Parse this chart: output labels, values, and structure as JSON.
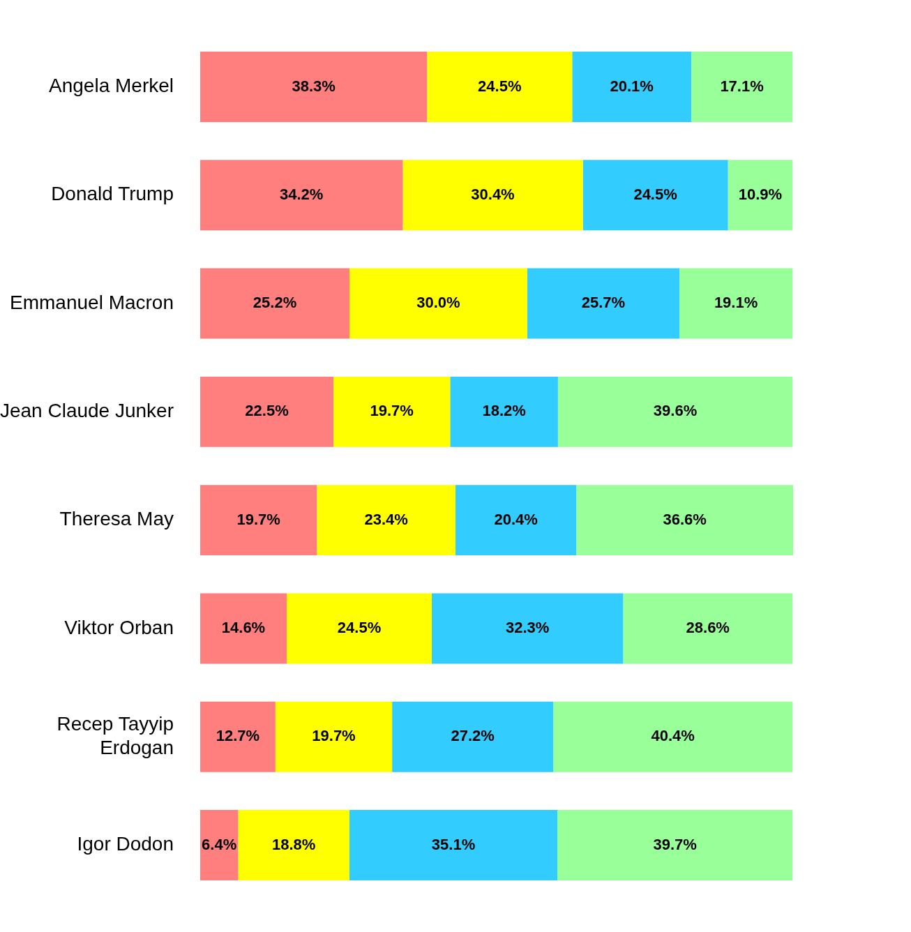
{
  "chart_data": {
    "type": "bar",
    "orientation": "horizontal",
    "stacked": true,
    "tick_labels": "y",
    "categories": [
      "Angela Merkel",
      "Donald Trump",
      "Emmanuel Macron",
      "Jean Claude Junker",
      "Theresa May",
      "Viktor Orban",
      "Recep Tayyip Erdogan",
      "Igor Dodon"
    ],
    "series": [
      {
        "color": "#ff7f7f",
        "values": [
          38.3,
          34.2,
          25.2,
          22.5,
          19.7,
          14.6,
          12.7,
          6.4
        ],
        "value_labels": [
          "38.3%",
          "34.2%",
          "25.2%",
          "22.5%",
          "19.7%",
          "14.6%",
          "12.7%",
          "6.4%"
        ]
      },
      {
        "color": "#ffff00",
        "values": [
          24.5,
          30.4,
          30.0,
          19.7,
          23.4,
          24.5,
          19.7,
          18.8
        ],
        "value_labels": [
          "24.5%",
          "30.4%",
          "30.0%",
          "19.7%",
          "23.4%",
          "24.5%",
          "19.7%",
          "18.8%"
        ]
      },
      {
        "color": "#33ccff",
        "values": [
          20.1,
          24.5,
          25.7,
          18.2,
          20.4,
          32.3,
          27.2,
          35.1
        ],
        "value_labels": [
          "20.1%",
          "24.5%",
          "25.7%",
          "18.2%",
          "20.4%",
          "32.3%",
          "27.2%",
          "35.1%"
        ]
      },
      {
        "color": "#99ff99",
        "values": [
          17.1,
          10.9,
          19.1,
          39.6,
          36.6,
          28.6,
          40.4,
          39.7
        ],
        "value_labels": [
          "17.1%",
          "10.9%",
          "19.1%",
          "39.6%",
          "36.6%",
          "28.6%",
          "40.4%",
          "39.7%"
        ]
      }
    ]
  }
}
